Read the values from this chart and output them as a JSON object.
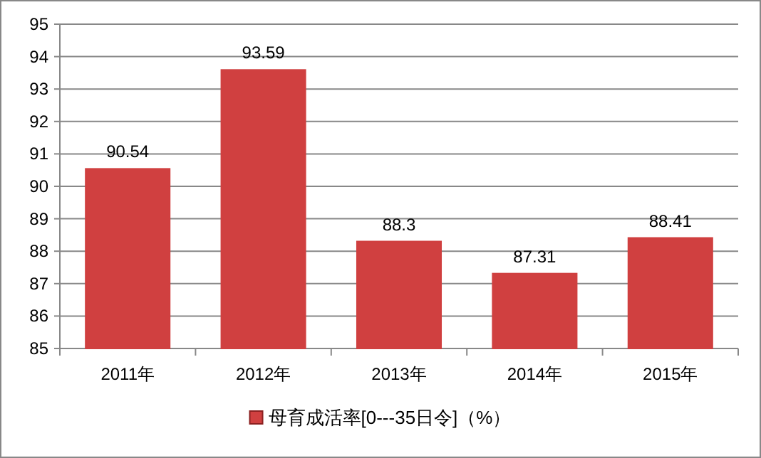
{
  "chart_data": {
    "type": "bar",
    "categories": [
      "2011年",
      "2012年",
      "2013年",
      "2014年",
      "2015年"
    ],
    "series": [
      {
        "name": "母育成活率[0---35日令]（%）",
        "color": "#d04040",
        "values": [
          90.54,
          93.59,
          88.3,
          87.31,
          88.41
        ]
      }
    ],
    "ylim": [
      85,
      95
    ],
    "yticks": [
      85,
      86,
      87,
      88,
      89,
      90,
      91,
      92,
      93,
      94,
      95
    ],
    "grid": "y",
    "legend": "bottom",
    "data_labels": true
  }
}
